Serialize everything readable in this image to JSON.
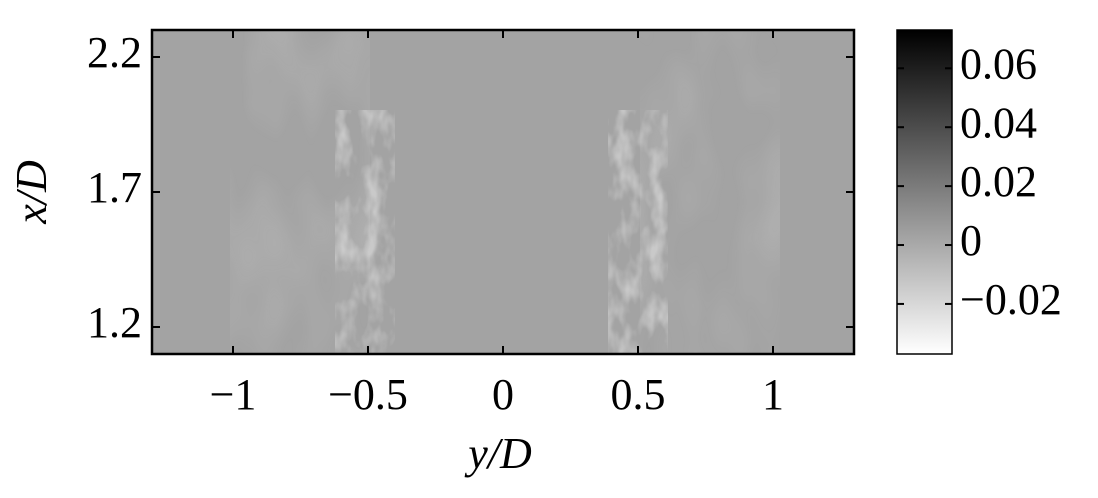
{
  "chart_data": {
    "type": "heatmap",
    "x_label": "y/D",
    "y_label": "x/D",
    "xlim": [
      -1.3,
      1.3
    ],
    "xticks": [
      {
        "value": -1,
        "label": "−1"
      },
      {
        "value": -0.5,
        "label": "−0.5"
      },
      0,
      0.5,
      1
    ],
    "ylim": [
      1.1,
      2.3
    ],
    "yticks": [
      1.2,
      1.7,
      2.2
    ],
    "clim": [
      -0.037,
      0.073
    ],
    "cticks": [
      {
        "value": -0.02,
        "label": "−0.02"
      },
      0,
      0.02,
      0.04,
      0.06
    ]
  }
}
